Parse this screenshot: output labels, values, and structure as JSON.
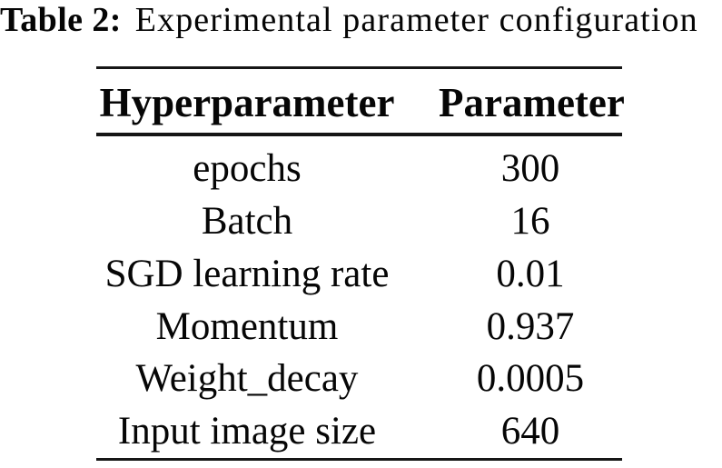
{
  "caption": {
    "label": "Table 2:",
    "title": "Experimental parameter configuration"
  },
  "table": {
    "col_headers": {
      "hyperparameter": "Hyperparameter",
      "parameter": "Parameter"
    },
    "rows": [
      {
        "hyperparameter": "epochs",
        "parameter": "300"
      },
      {
        "hyperparameter": "Batch",
        "parameter": "16"
      },
      {
        "hyperparameter": "SGD learning rate",
        "parameter": "0.01"
      },
      {
        "hyperparameter": "Momentum",
        "parameter": "0.937"
      },
      {
        "hyperparameter": "Weight_decay",
        "parameter": "0.0005"
      },
      {
        "hyperparameter": "Input image size",
        "parameter": "640"
      }
    ]
  },
  "colors": {
    "background": "#ffffff",
    "text": "#060606",
    "rule": "#161616"
  }
}
